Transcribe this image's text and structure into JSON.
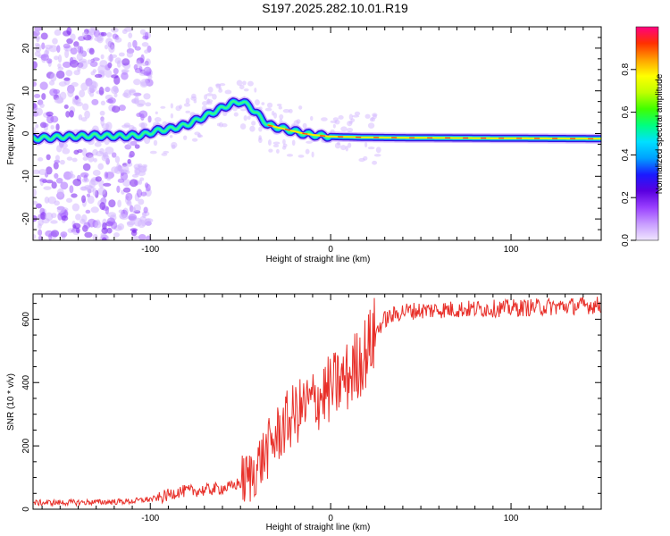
{
  "figure_title": "S197.2025.282.10.01.R19",
  "colors": {
    "snr_line": "#e8302a",
    "axis": "#000000",
    "colorbar_stops": [
      "#f0e6ff",
      "#c89cff",
      "#9a40ff",
      "#5a00e0",
      "#1a1aff",
      "#00a0ff",
      "#00e0ff",
      "#00ff80",
      "#40ff00",
      "#c0ff00",
      "#ffff00",
      "#ffa000",
      "#ff3000",
      "#ff0080"
    ]
  },
  "chart_data": [
    {
      "id": "spectrogram",
      "type": "heatmap",
      "xlabel": "Height of straight line (km)",
      "ylabel": "Frequency (Hz)",
      "xlim": [
        -165,
        150
      ],
      "ylim": [
        -25,
        25
      ],
      "xticks": [
        -100,
        0,
        100
      ],
      "yticks": [
        20,
        10,
        0,
        -10,
        -20
      ],
      "track": {
        "description_points_x": [
          -165,
          -150,
          -130,
          -115,
          -105,
          -95,
          -90,
          -85,
          -80,
          -75,
          -70,
          -65,
          -60,
          -55,
          -50,
          -45,
          -42,
          -38,
          -35,
          -30,
          -25,
          -20,
          -15,
          -10,
          -5,
          0,
          20,
          50,
          100,
          150
        ],
        "description_points_y": [
          -1.2,
          -0.8,
          -0.5,
          -0.6,
          -0.4,
          0.8,
          1.0,
          1.5,
          2.0,
          3.0,
          4.0,
          5.0,
          6.0,
          7.0,
          7.5,
          6.5,
          5.0,
          3.5,
          2.0,
          1.5,
          1.0,
          0.5,
          0.0,
          -0.3,
          -0.5,
          -0.7,
          -0.9,
          -1.0,
          -1.1,
          -1.2
        ]
      },
      "colorbar": {
        "label": "Normalized spectral amplitude",
        "range": [
          0,
          1
        ],
        "ticks": [
          0.0,
          0.2,
          0.4,
          0.6,
          0.8
        ]
      }
    },
    {
      "id": "snr",
      "type": "line",
      "xlabel": "Height of straight line (km)",
      "ylabel": "SNR (10 * v/v)",
      "xlim": [
        -165,
        150
      ],
      "ylim": [
        0,
        680
      ],
      "xticks": [
        -100,
        0,
        100
      ],
      "yticks": [
        0,
        200,
        400,
        600
      ],
      "envelope": {
        "x": [
          -165,
          -130,
          -110,
          -95,
          -85,
          -70,
          -55,
          -45,
          -38,
          -30,
          -25,
          -20,
          -10,
          0,
          10,
          20,
          25,
          30,
          40,
          60,
          100,
          150
        ],
        "y": [
          20,
          22,
          25,
          35,
          55,
          60,
          70,
          100,
          160,
          230,
          270,
          300,
          340,
          380,
          420,
          500,
          560,
          600,
          625,
          630,
          635,
          645
        ]
      }
    }
  ],
  "labels": {
    "spec_xlabel": "Height of straight line (km)",
    "spec_ylabel": "Frequency (Hz)",
    "snr_xlabel": "Height of straight line (km)",
    "snr_ylabel": "SNR (10 * v/v)",
    "cbar_label": "Normalized spectral amplitude"
  }
}
